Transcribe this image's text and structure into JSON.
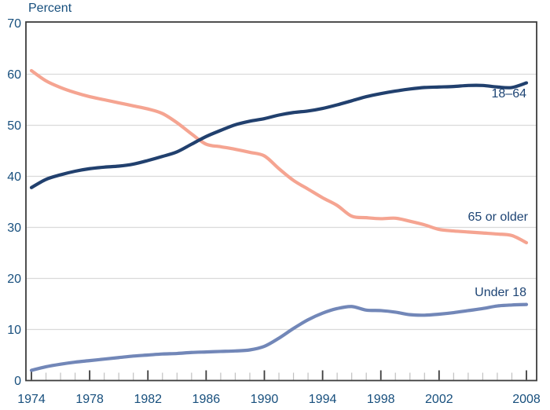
{
  "chart_data": {
    "type": "line",
    "title": "",
    "ylabel": "Percent",
    "xlabel": "",
    "xlim": [
      1974,
      2008
    ],
    "ylim": [
      0,
      70
    ],
    "grid": "horizontal",
    "legend_position": "inline-right-of-lines",
    "yticks": [
      0,
      10,
      20,
      30,
      40,
      50,
      60,
      70
    ],
    "xtick_labels": [
      "1974",
      "1978",
      "1982",
      "1986",
      "1990",
      "1994",
      "1998",
      "2002",
      "2008"
    ],
    "xtick_label_years": [
      1974,
      1978,
      1982,
      1986,
      1990,
      1994,
      1998,
      2002,
      2008
    ],
    "minor_ticks": "every year 1974-2008",
    "x": [
      1974,
      1975,
      1976,
      1977,
      1978,
      1979,
      1980,
      1981,
      1982,
      1983,
      1984,
      1985,
      1986,
      1987,
      1988,
      1989,
      1990,
      1991,
      1992,
      1993,
      1994,
      1995,
      1996,
      1997,
      1998,
      1999,
      2000,
      2001,
      2002,
      2003,
      2004,
      2005,
      2006,
      2007,
      2008
    ],
    "series": [
      {
        "name": "18–64",
        "color": "#21406e",
        "values": [
          37.8,
          39.4,
          40.3,
          41.0,
          41.5,
          41.8,
          42.0,
          42.4,
          43.1,
          43.9,
          44.8,
          46.3,
          47.8,
          49.0,
          50.1,
          50.8,
          51.3,
          52.0,
          52.5,
          52.8,
          53.3,
          54.0,
          54.8,
          55.6,
          56.2,
          56.7,
          57.1,
          57.4,
          57.5,
          57.6,
          57.8,
          57.8,
          57.5,
          57.4,
          58.3
        ]
      },
      {
        "name": "65 or older",
        "color": "#f5a491",
        "values": [
          60.7,
          58.7,
          57.4,
          56.4,
          55.6,
          55.0,
          54.4,
          53.8,
          53.2,
          52.3,
          50.5,
          48.3,
          46.3,
          45.8,
          45.3,
          44.7,
          44.0,
          41.5,
          39.2,
          37.5,
          35.8,
          34.3,
          32.2,
          31.9,
          31.7,
          31.8,
          31.2,
          30.5,
          29.6,
          29.3,
          29.1,
          28.9,
          28.7,
          28.4,
          27.0
        ]
      },
      {
        "name": "Under 18",
        "color": "#7287b8",
        "values": [
          2.0,
          2.7,
          3.2,
          3.6,
          3.9,
          4.2,
          4.5,
          4.8,
          5.0,
          5.2,
          5.3,
          5.5,
          5.6,
          5.7,
          5.8,
          6.0,
          6.7,
          8.3,
          10.2,
          11.9,
          13.2,
          14.1,
          14.5,
          13.8,
          13.7,
          13.4,
          12.9,
          12.8,
          13.0,
          13.3,
          13.7,
          14.1,
          14.6,
          14.8,
          14.9
        ]
      }
    ]
  },
  "style": {
    "axis_text_color": "#174f7d",
    "series_label_color": "#1d4474",
    "border_color": "#3c3c3c",
    "gridline_color": "#dadada",
    "minor_tick_color": "#c0c0c0",
    "major_tick_color": "#3c3c3c",
    "background": "#ffffff"
  }
}
